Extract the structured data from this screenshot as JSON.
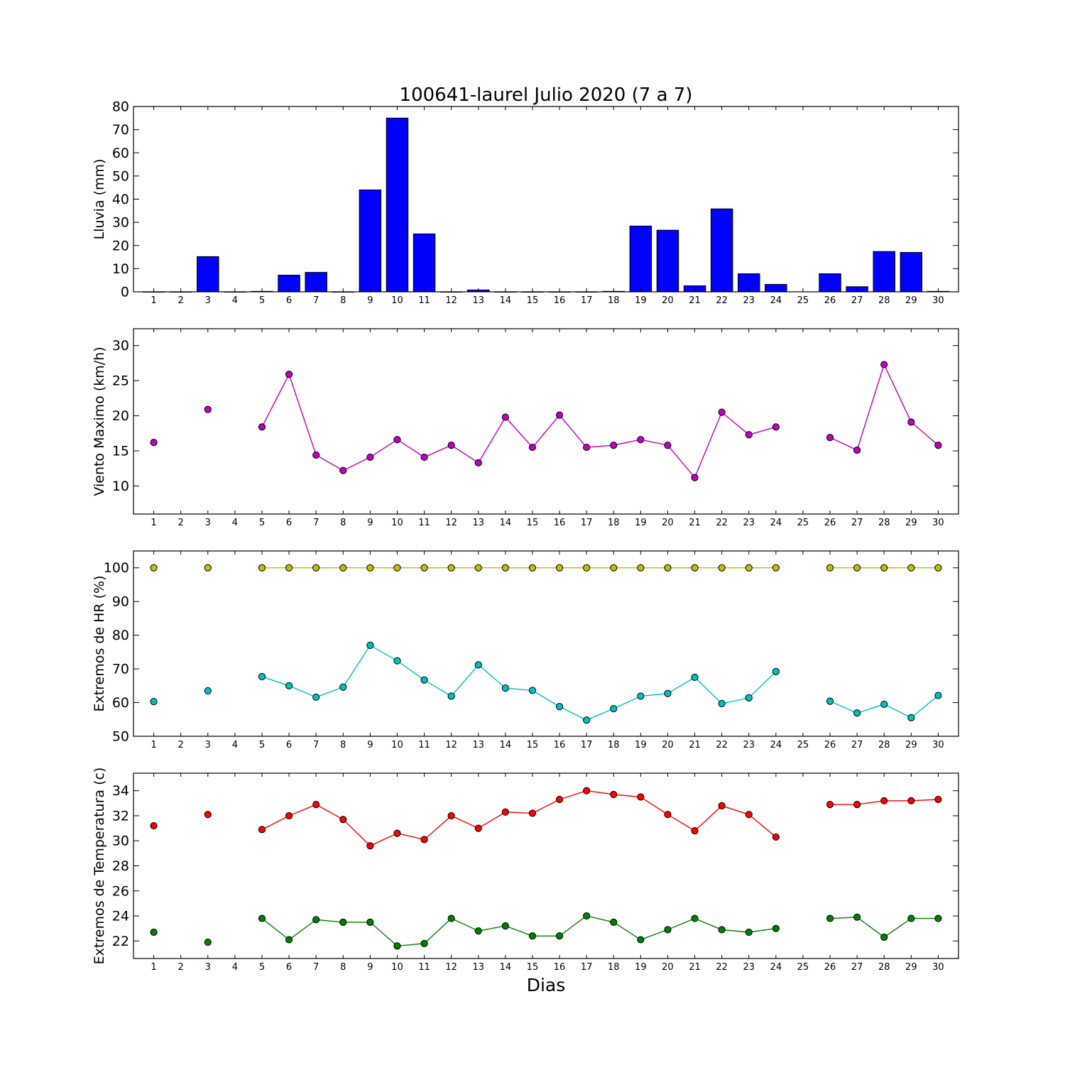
{
  "figure": {
    "title": "100641-laurel Julio 2020  (7 a 7)",
    "xlabel": "Dias"
  },
  "chart_data": [
    {
      "type": "bar",
      "title": "100641-laurel Julio 2020  (7 a 7)",
      "ylabel": "Lluvia (mm)",
      "xlabel": "",
      "ylim": [
        0,
        80
      ],
      "yticks": [
        0,
        10,
        20,
        30,
        40,
        50,
        60,
        70,
        80
      ],
      "categories": [
        1,
        2,
        3,
        4,
        5,
        6,
        7,
        8,
        9,
        10,
        11,
        12,
        13,
        14,
        15,
        16,
        17,
        18,
        19,
        20,
        21,
        22,
        23,
        24,
        25,
        26,
        27,
        28,
        29,
        30
      ],
      "series": [
        {
          "color": "#0000ff",
          "values": [
            0,
            0,
            15.2,
            0,
            0.2,
            7.2,
            8.4,
            0,
            44,
            75,
            25,
            0,
            0.8,
            0,
            0,
            0,
            0,
            0.2,
            28.4,
            26.6,
            2.6,
            35.8,
            7.8,
            3.2,
            null,
            7.8,
            2.2,
            17.4,
            17,
            0.2
          ]
        }
      ]
    },
    {
      "type": "line",
      "ylabel": "Viento Maximo (km/h)",
      "xlabel": "",
      "ylim": [
        6,
        32.4
      ],
      "yticks": [
        10,
        15,
        20,
        25,
        30
      ],
      "x": [
        1,
        2,
        3,
        4,
        5,
        6,
        7,
        8,
        9,
        10,
        11,
        12,
        13,
        14,
        15,
        16,
        17,
        18,
        19,
        20,
        21,
        22,
        23,
        24,
        25,
        26,
        27,
        28,
        29,
        30
      ],
      "series": [
        {
          "color": "#bf00bf",
          "values": [
            16.2,
            null,
            20.9,
            null,
            18.4,
            25.9,
            14.4,
            12.2,
            14.1,
            16.6,
            14.1,
            15.8,
            13.3,
            19.8,
            15.5,
            20.1,
            15.5,
            15.8,
            16.6,
            15.8,
            11.2,
            20.5,
            17.3,
            18.4,
            null,
            16.9,
            15.1,
            27.3,
            19.1,
            15.8
          ]
        }
      ]
    },
    {
      "type": "line",
      "ylabel": "Extremos de HR (%)",
      "xlabel": "",
      "ylim": [
        50,
        105
      ],
      "yticks": [
        50,
        60,
        70,
        80,
        90,
        100
      ],
      "x": [
        1,
        2,
        3,
        4,
        5,
        6,
        7,
        8,
        9,
        10,
        11,
        12,
        13,
        14,
        15,
        16,
        17,
        18,
        19,
        20,
        21,
        22,
        23,
        24,
        25,
        26,
        27,
        28,
        29,
        30
      ],
      "series": [
        {
          "color": "#bfbf00",
          "values": [
            100,
            null,
            100,
            null,
            100,
            100,
            100,
            100,
            100,
            100,
            100,
            100,
            100,
            100,
            100,
            100,
            100,
            100,
            100,
            100,
            100,
            100,
            100,
            100,
            null,
            100,
            100,
            100,
            100,
            100
          ]
        },
        {
          "color": "#00bfbf",
          "values": [
            60.3,
            null,
            63.5,
            null,
            67.7,
            65,
            61.6,
            64.6,
            77,
            72.4,
            66.7,
            61.9,
            71.2,
            64.3,
            63.6,
            58.8,
            54.8,
            58.2,
            61.9,
            62.7,
            67.5,
            59.7,
            61.4,
            69.2,
            null,
            60.4,
            56.9,
            59.5,
            55.5,
            62.1
          ]
        }
      ]
    },
    {
      "type": "line",
      "ylabel": "Extremos de Temperatura (c)",
      "xlabel": "Dias",
      "ylim": [
        20.6,
        35.4
      ],
      "yticks": [
        22,
        24,
        26,
        28,
        30,
        32,
        34
      ],
      "x": [
        1,
        2,
        3,
        4,
        5,
        6,
        7,
        8,
        9,
        10,
        11,
        12,
        13,
        14,
        15,
        16,
        17,
        18,
        19,
        20,
        21,
        22,
        23,
        24,
        25,
        26,
        27,
        28,
        29,
        30
      ],
      "series": [
        {
          "color": "#ff0000",
          "values": [
            31.2,
            null,
            32.1,
            null,
            30.9,
            32,
            32.9,
            31.7,
            29.6,
            30.6,
            30.1,
            32,
            31,
            32.3,
            32.2,
            33.3,
            34,
            33.7,
            33.5,
            32.1,
            30.8,
            32.8,
            32.1,
            30.3,
            null,
            32.9,
            32.9,
            33.2,
            33.2,
            33.3
          ]
        },
        {
          "color": "#008000",
          "values": [
            22.7,
            null,
            21.9,
            null,
            23.8,
            22.1,
            23.7,
            23.5,
            23.5,
            21.6,
            21.8,
            23.8,
            22.8,
            23.2,
            22.4,
            22.4,
            24,
            23.5,
            22.1,
            22.9,
            23.8,
            22.9,
            22.7,
            23,
            null,
            23.8,
            23.9,
            22.3,
            23.8,
            23.8
          ]
        }
      ]
    }
  ]
}
